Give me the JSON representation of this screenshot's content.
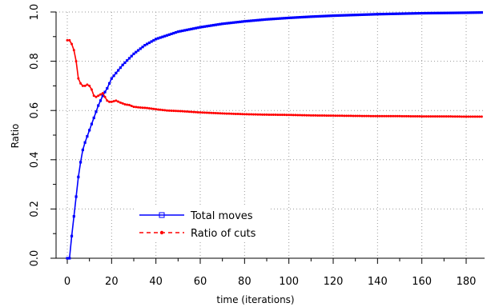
{
  "chart_data": {
    "type": "line",
    "title": "",
    "xlabel": "time (iterations)",
    "ylabel": "Ratio",
    "xlim": [
      0,
      187
    ],
    "ylim": [
      0,
      1.0
    ],
    "x_ticks": [
      0,
      20,
      40,
      60,
      80,
      100,
      120,
      140,
      160,
      180
    ],
    "x_tick_labels": [
      "0",
      "20",
      "40",
      "60",
      "80",
      "100",
      "120",
      "140",
      "160",
      "180"
    ],
    "y_ticks": [
      0,
      0.2,
      0.4,
      0.6,
      0.8,
      1.0
    ],
    "y_tick_labels": [
      "0.0",
      "0.2",
      "0.4",
      "0.6",
      "0.8",
      "1.0"
    ],
    "grid": true,
    "legend_position": "lower-center",
    "series": [
      {
        "name": "Total moves",
        "color": "#0000ff",
        "line_style": "solid",
        "marker": "square",
        "x": [
          0,
          1,
          2,
          3,
          4,
          5,
          6,
          7,
          8,
          10,
          12,
          14,
          16,
          18,
          20,
          25,
          30,
          35,
          40,
          45,
          50,
          60,
          70,
          80,
          90,
          100,
          110,
          120,
          130,
          140,
          150,
          160,
          170,
          180,
          187
        ],
        "y": [
          0,
          0,
          0.09,
          0.17,
          0.25,
          0.33,
          0.39,
          0.44,
          0.47,
          0.52,
          0.57,
          0.62,
          0.66,
          0.69,
          0.73,
          0.785,
          0.83,
          0.865,
          0.89,
          0.905,
          0.92,
          0.938,
          0.952,
          0.962,
          0.97,
          0.976,
          0.981,
          0.985,
          0.988,
          0.991,
          0.993,
          0.995,
          0.996,
          0.997,
          0.998
        ]
      },
      {
        "name": "Ratio of cuts",
        "color": "#ff0000",
        "line_style": "dashed",
        "marker": "circle",
        "x": [
          0,
          1,
          2,
          3,
          4,
          5,
          6,
          7,
          8,
          9,
          10,
          11,
          12,
          13,
          14,
          15,
          16,
          17,
          18,
          19,
          20,
          22,
          24,
          26,
          28,
          30,
          33,
          36,
          40,
          45,
          50,
          55,
          60,
          70,
          80,
          90,
          100,
          110,
          120,
          130,
          140,
          150,
          160,
          170,
          180,
          187
        ],
        "y": [
          0.885,
          0.885,
          0.87,
          0.845,
          0.8,
          0.73,
          0.71,
          0.7,
          0.7,
          0.705,
          0.7,
          0.685,
          0.66,
          0.655,
          0.66,
          0.665,
          0.67,
          0.655,
          0.64,
          0.635,
          0.635,
          0.64,
          0.632,
          0.625,
          0.622,
          0.615,
          0.612,
          0.61,
          0.605,
          0.6,
          0.598,
          0.595,
          0.592,
          0.588,
          0.585,
          0.583,
          0.582,
          0.58,
          0.579,
          0.578,
          0.577,
          0.577,
          0.576,
          0.576,
          0.575,
          0.575
        ]
      }
    ]
  }
}
